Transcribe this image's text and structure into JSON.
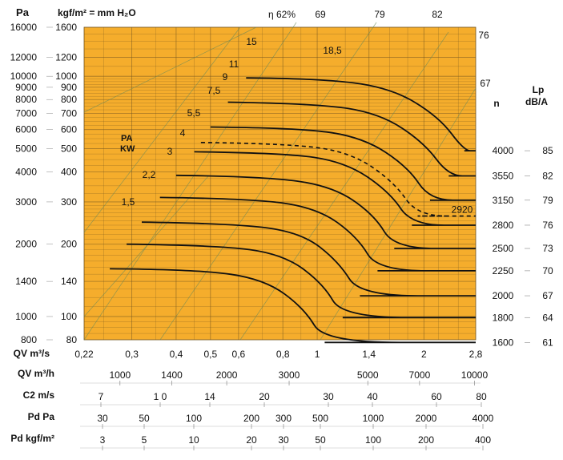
{
  "chart_data": {
    "type": "line",
    "title": "",
    "colors": {
      "plot_bg": "#f5ad2c",
      "grid": "#6e5220",
      "curve": "#111111",
      "efficiency_line": "#6a8a5a"
    },
    "grid": true,
    "ylabel_left": "Pa",
    "ylabel_mid": "kgf/m² = mm H₂O",
    "y_scale": "log",
    "y_ticks_pa": [
      "16000",
      "12000",
      "10000",
      "9000",
      "8000",
      "7000",
      "6000",
      "5000",
      "4000",
      "3000",
      "2000",
      "1400",
      "1000",
      "800"
    ],
    "y_ticks_kgf": [
      "1600",
      "1200",
      "1000",
      "900",
      "800",
      "700",
      "600",
      "500",
      "400",
      "300",
      "200",
      "140",
      "100",
      "80"
    ],
    "x_scale": "log",
    "x_ticks_qv_m3s": [
      "0,22",
      "0,3",
      "0,4",
      "0,5",
      "0,6",
      "0,8",
      "1",
      "1,4",
      "2",
      "2,8"
    ],
    "qv_m3s_label": "QV m³/s",
    "scales": [
      {
        "label": "QV m³/h",
        "ticks": [
          "1000",
          "1400",
          "2000",
          "3000",
          "5000",
          "7000",
          "10000"
        ]
      },
      {
        "label": "C2 m/s",
        "ticks": [
          "7",
          "1 0",
          "14",
          "20",
          "30",
          "40",
          "60",
          "80"
        ]
      },
      {
        "label": "Pd Pa",
        "ticks": [
          "30",
          "50",
          "100",
          "200",
          "300",
          "500",
          "1000",
          "2000",
          "4000"
        ]
      },
      {
        "label": "Pd kgf/m²",
        "ticks": [
          "3",
          "5",
          "10",
          "20",
          "30",
          "50",
          "100",
          "200",
          "400"
        ]
      }
    ],
    "power_label_line1": "PA",
    "power_label_line2": "KW",
    "power_labels": [
      "1,5",
      "2,2",
      "3",
      "4",
      "5,5",
      "7,5",
      "9",
      "11",
      "15",
      "18,5"
    ],
    "efficiency_labels": [
      "η 62%",
      "69",
      "79",
      "82",
      "76",
      "67"
    ],
    "rpm_header": "n",
    "lp_header_1": "Lp",
    "lp_header_2": "dB/A",
    "series": [
      {
        "name": "4000",
        "lp": "85",
        "q_m3s": [
          0.63,
          1.0,
          1.6,
          2.2,
          2.6,
          2.8
        ],
        "p_kgf": [
          985,
          980,
          900,
          680,
          490,
          490
        ]
      },
      {
        "name": "3550",
        "lp": "82",
        "q_m3s": [
          0.56,
          1.0,
          1.5,
          2.0,
          2.35,
          2.8
        ],
        "p_kgf": [
          780,
          770,
          700,
          530,
          385,
          385
        ]
      },
      {
        "name": "3150",
        "lp": "79",
        "q_m3s": [
          0.5,
          0.9,
          1.35,
          1.8,
          2.08,
          2.8
        ],
        "p_kgf": [
          615,
          610,
          555,
          420,
          305,
          305
        ]
      },
      {
        "name": "2800",
        "lp": "76",
        "q_m3s": [
          0.45,
          0.8,
          1.2,
          1.6,
          1.85,
          2.8
        ],
        "p_kgf": [
          485,
          480,
          440,
          330,
          240,
          240
        ]
      },
      {
        "name": "2500",
        "lp": "73",
        "q_m3s": [
          0.4,
          0.7,
          1.1,
          1.45,
          1.65,
          2.8
        ],
        "p_kgf": [
          387,
          383,
          350,
          265,
          192,
          192
        ]
      },
      {
        "name": "2250",
        "lp": "70",
        "q_m3s": [
          0.36,
          0.65,
          1.0,
          1.3,
          1.48,
          2.8
        ],
        "p_kgf": [
          313,
          310,
          283,
          214,
          155,
          155
        ]
      },
      {
        "name": "2000",
        "lp": "67",
        "q_m3s": [
          0.32,
          0.58,
          0.9,
          1.15,
          1.32,
          2.8
        ],
        "p_kgf": [
          247,
          244,
          224,
          169,
          122,
          122
        ]
      },
      {
        "name": "1800",
        "lp": "64",
        "q_m3s": [
          0.29,
          0.52,
          0.8,
          1.04,
          1.18,
          2.8
        ],
        "p_kgf": [
          200,
          198,
          182,
          137,
          99,
          99
        ]
      },
      {
        "name": "1600",
        "lp": "61",
        "q_m3s": [
          0.26,
          0.46,
          0.71,
          0.92,
          1.05,
          2.8
        ],
        "p_kgf": [
          158,
          157,
          143,
          108,
          78,
          78
        ]
      }
    ],
    "dashed_series": {
      "name": "2920",
      "q_m3s": [
        0.47,
        0.84,
        1.25,
        1.65,
        1.92,
        2.8
      ],
      "p_kgf": [
        530,
        525,
        480,
        362,
        262,
        262
      ]
    }
  }
}
